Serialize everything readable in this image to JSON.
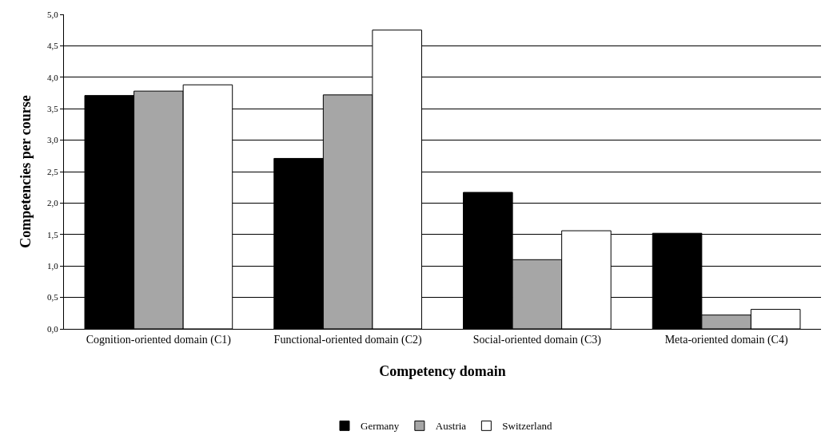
{
  "chart_data": {
    "type": "bar",
    "xlabel": "Competency domain",
    "ylabel": "Competencies per course",
    "categories": [
      "Cognition-oriented domain (C1)",
      "Functional-oriented domain (C2)",
      "Social-oriented domain (C3)",
      "Meta-oriented domain (C4)"
    ],
    "series": [
      {
        "name": "Germany",
        "color": "#000000",
        "values": [
          3.71,
          2.71,
          2.17,
          1.52
        ]
      },
      {
        "name": "Austria",
        "color": "#a6a6a6",
        "values": [
          3.78,
          3.72,
          1.1,
          0.22
        ]
      },
      {
        "name": "Switzerland",
        "color": "#ffffff",
        "values": [
          3.88,
          4.75,
          1.56,
          0.31
        ]
      }
    ],
    "ylim": [
      0,
      5
    ],
    "yticks": [
      {
        "value": 0,
        "label": "0,0"
      },
      {
        "value": 0.5,
        "label": "0,5"
      },
      {
        "value": 1,
        "label": "1,0"
      },
      {
        "value": 1.5,
        "label": "1,5"
      },
      {
        "value": 2,
        "label": "2,0"
      },
      {
        "value": 2.5,
        "label": "2,5"
      },
      {
        "value": 3,
        "label": "3,0"
      },
      {
        "value": 3.5,
        "label": "3,5"
      },
      {
        "value": 4,
        "label": "4,0"
      },
      {
        "value": 4.5,
        "label": "4,5"
      },
      {
        "value": 5,
        "label": "5,0"
      }
    ],
    "grid": "y",
    "legend": "bottom"
  }
}
